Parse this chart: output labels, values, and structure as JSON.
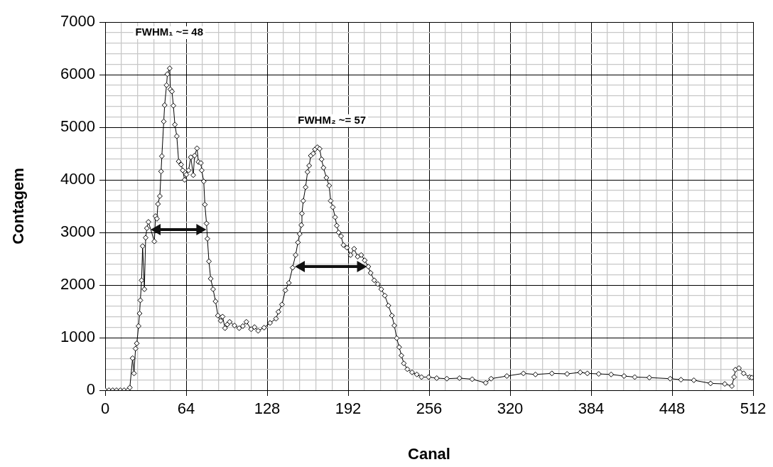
{
  "chart_data": {
    "type": "line",
    "xlabel": "Canal",
    "ylabel": "Contagem",
    "annotations": [
      "FWHM₁ ~= 48",
      "FWHM₂ ~= 57"
    ],
    "xlim": [
      0,
      512
    ],
    "ylim": [
      0,
      7000
    ],
    "xticks": [
      0,
      {
        "value": 12.8,
        "label": null
      },
      {
        "value": 25.6,
        "label": null
      },
      {
        "value": 38.4,
        "label": null
      },
      {
        "value": 51.2,
        "label": null
      },
      64,
      {
        "value": 76.8,
        "label": null
      },
      {
        "value": 89.6,
        "label": null
      },
      {
        "value": 102.4,
        "label": null
      },
      {
        "value": 115.2,
        "label": null
      },
      128,
      {
        "value": 140.8,
        "label": null
      },
      {
        "value": 153.6,
        "label": null
      },
      {
        "value": 166.4,
        "label": null
      },
      {
        "value": 179.2,
        "label": null
      },
      192,
      {
        "value": 204.8,
        "label": null
      },
      {
        "value": 217.6,
        "label": null
      },
      {
        "value": 230.4,
        "label": null
      },
      {
        "value": 243.2,
        "label": null
      },
      256,
      {
        "value": 268.8,
        "label": null
      },
      {
        "value": 281.6,
        "label": null
      },
      {
        "value": 294.4,
        "label": null
      },
      {
        "value": 307.2,
        "label": null
      },
      320,
      {
        "value": 332.8,
        "label": null
      },
      {
        "value": 345.6,
        "label": null
      },
      {
        "value": 358.4,
        "label": null
      },
      {
        "value": 371.2,
        "label": null
      },
      384,
      {
        "value": 396.8,
        "label": null
      },
      {
        "value": 409.6,
        "label": null
      },
      {
        "value": 422.4,
        "label": null
      },
      {
        "value": 435.2,
        "label": null
      },
      448,
      {
        "value": 460.8,
        "label": null
      },
      {
        "value": 473.6,
        "label": null
      },
      {
        "value": 486.4,
        "label": null
      },
      {
        "value": 499.2,
        "label": null
      },
      512
    ],
    "yticks": [
      0,
      {
        "value": 200,
        "label": null
      },
      {
        "value": 400,
        "label": null
      },
      {
        "value": 600,
        "label": null
      },
      {
        "value": 800,
        "label": null
      },
      1000,
      {
        "value": 1200,
        "label": null
      },
      {
        "value": 1400,
        "label": null
      },
      {
        "value": 1600,
        "label": null
      },
      {
        "value": 1800,
        "label": null
      },
      2000,
      {
        "value": 2200,
        "label": null
      },
      {
        "value": 2400,
        "label": null
      },
      {
        "value": 2600,
        "label": null
      },
      {
        "value": 2800,
        "label": null
      },
      3000,
      {
        "value": 3200,
        "label": null
      },
      {
        "value": 3400,
        "label": null
      },
      {
        "value": 3600,
        "label": null
      },
      {
        "value": 3800,
        "label": null
      },
      4000,
      {
        "value": 4200,
        "label": null
      },
      {
        "value": 4400,
        "label": null
      },
      {
        "value": 4600,
        "label": null
      },
      {
        "value": 4800,
        "label": null
      },
      5000,
      {
        "value": 5200,
        "label": null
      },
      {
        "value": 5400,
        "label": null
      },
      {
        "value": 5600,
        "label": null
      },
      {
        "value": 5800,
        "label": null
      },
      6000,
      {
        "value": 6200,
        "label": null
      },
      {
        "value": 6400,
        "label": null
      },
      {
        "value": 6600,
        "label": null
      },
      {
        "value": 6800,
        "label": null
      },
      7000
    ],
    "grid": true,
    "legend": false,
    "marker": "diamond",
    "line_style": "solid",
    "series": [
      {
        "color": "#000000",
        "x": [
          0,
          3,
          6,
          9,
          12,
          15,
          18,
          19.5,
          21.7,
          22.8,
          24,
          25,
          26.4,
          27.2,
          27.8,
          28.8,
          29.6,
          31,
          32,
          33,
          34.2,
          38.9,
          39.8,
          40.9,
          41.7,
          43.2,
          44.2,
          44.8,
          46.3,
          47,
          48.5,
          49.2,
          51,
          51.5,
          52.8,
          53.9,
          55.1,
          56.6,
          58.1,
          60,
          61.3,
          62.8,
          64.2,
          65.9,
          67.7,
          69.6,
          70.7,
          72.6,
          73.7,
          75.6,
          76.3,
          77.9,
          78.8,
          80.1,
          80.8,
          82,
          83.4,
          85.3,
          87.2,
          89.1,
          91.3,
          92.8,
          94.7,
          96.5,
          98.4,
          102.2,
          105.9,
          108.8,
          111.6,
          115.3,
          118,
          120.9,
          125.6,
          130.3,
          135,
          136.9,
          139.7,
          142.4,
          145.2,
          148.1,
          150.5,
          152.3,
          153.7,
          155,
          155.5,
          156.5,
          158.4,
          159.9,
          161.2,
          162.5,
          164.4,
          165.8,
          167.7,
          169.5,
          171,
          172.5,
          174.8,
          177,
          178.2,
          179.9,
          181.7,
          183,
          184.5,
          186.4,
          188.3,
          191.1,
          193.9,
          196.7,
          199.5,
          202.3,
          205.1,
          207.9,
          209.8,
          212.6,
          215.4,
          218.2,
          221,
          223.8,
          226.6,
          228.5,
          230.4,
          232.3,
          234.1,
          236,
          238.8,
          242.5,
          246.3,
          250,
          255.6,
          262,
          270,
          280,
          290,
          300.7,
          305,
          317.4,
          330.5,
          340,
          353,
          365,
          375.4,
          381,
          390,
          399.8,
          410,
          418.5,
          430,
          446.5,
          455,
          465.2,
          478.4,
          489.6,
          495.2,
          497,
          498,
          500.8,
          504.5,
          509.3,
          511
        ],
        "values": [
          0,
          0,
          0,
          0,
          0,
          0,
          0,
          50,
          610,
          320,
          790,
          890,
          1220,
          1460,
          1710,
          2090,
          2740,
          1920,
          2900,
          3080,
          3200,
          2830,
          3310,
          3260,
          3540,
          3690,
          4160,
          4450,
          5110,
          5420,
          5800,
          6010,
          6120,
          5720,
          5680,
          5410,
          5050,
          4830,
          4350,
          4290,
          4180,
          4000,
          4100,
          4180,
          4430,
          4090,
          4460,
          4600,
          4340,
          4320,
          4180,
          3970,
          3530,
          3170,
          2880,
          2450,
          2120,
          1920,
          1690,
          1420,
          1320,
          1400,
          1180,
          1250,
          1300,
          1230,
          1180,
          1220,
          1300,
          1160,
          1200,
          1130,
          1190,
          1280,
          1360,
          1490,
          1630,
          1900,
          2040,
          2330,
          2570,
          2810,
          2970,
          3140,
          3360,
          3600,
          3860,
          4150,
          4270,
          4460,
          4500,
          4580,
          4620,
          4590,
          4390,
          4230,
          4040,
          3890,
          3600,
          3480,
          3290,
          3130,
          3000,
          2930,
          2760,
          2710,
          2570,
          2690,
          2540,
          2570,
          2470,
          2350,
          2230,
          2090,
          2020,
          1920,
          1800,
          1610,
          1420,
          1230,
          990,
          820,
          660,
          510,
          400,
          340,
          300,
          250,
          250,
          230,
          220,
          230,
          210,
          140,
          220,
          270,
          320,
          300,
          320,
          310,
          340,
          320,
          310,
          300,
          270,
          250,
          240,
          220,
          200,
          190,
          130,
          120,
          80,
          250,
          390,
          420,
          320,
          250,
          240
        ]
      }
    ]
  }
}
